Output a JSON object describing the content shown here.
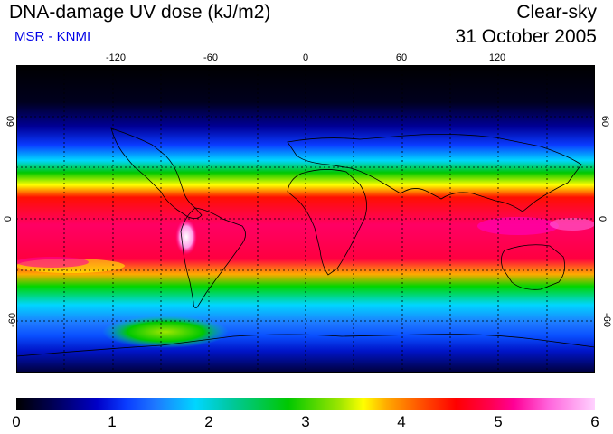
{
  "header": {
    "title": "DNA-damage UV dose (kJ/m2)",
    "subtitle": "MSR - KNMI",
    "condition": "Clear-sky",
    "date": "31 October 2005"
  },
  "map": {
    "longitude_ticks": [
      "-120",
      "-60",
      "0",
      "60",
      "120"
    ],
    "latitude_ticks_left": [
      "60",
      "0",
      "-60"
    ],
    "latitude_ticks_right": [
      "60",
      "0",
      "-60"
    ],
    "grid": "dashed-30deg",
    "projection": "equirectangular",
    "lon_range": [
      -180,
      180
    ],
    "lat_range": [
      -90,
      90
    ]
  },
  "colorbar": {
    "min": 0,
    "max": 6,
    "tick_labels": [
      "0",
      "1",
      "2",
      "3",
      "4",
      "5",
      "6"
    ],
    "colors": [
      "#000000",
      "#0000c8",
      "#00d6ff",
      "#00c800",
      "#ffff00",
      "#ff0000",
      "#ff0096",
      "#ffd2ff"
    ]
  }
}
